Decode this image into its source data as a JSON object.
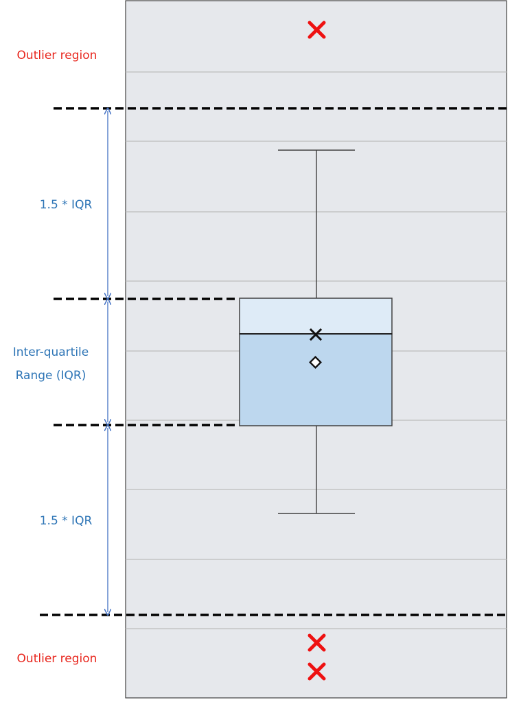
{
  "labels": {
    "outlier_top": "Outlier region",
    "iqr_upper": "1.5 * IQR",
    "iqr_line1": "Inter-quartile",
    "iqr_line2": "Range (IQR)",
    "iqr_lower": "1.5 * IQR",
    "outlier_bottom": "Outlier region"
  },
  "colors": {
    "plot_bg": "#e6e8ec",
    "gridline": "#bdbdbd",
    "box_upper": "#deebf7",
    "box_lower": "#bdd7ee",
    "box_stroke": "#404040",
    "dashed": "#000000",
    "arrow": "#4472c4",
    "outlier": "#ee1111"
  },
  "icons": {
    "mean_marker": "x-mark-icon",
    "median_alt_marker": "diamond-icon",
    "outlier_marker": "red-x-icon"
  }
}
